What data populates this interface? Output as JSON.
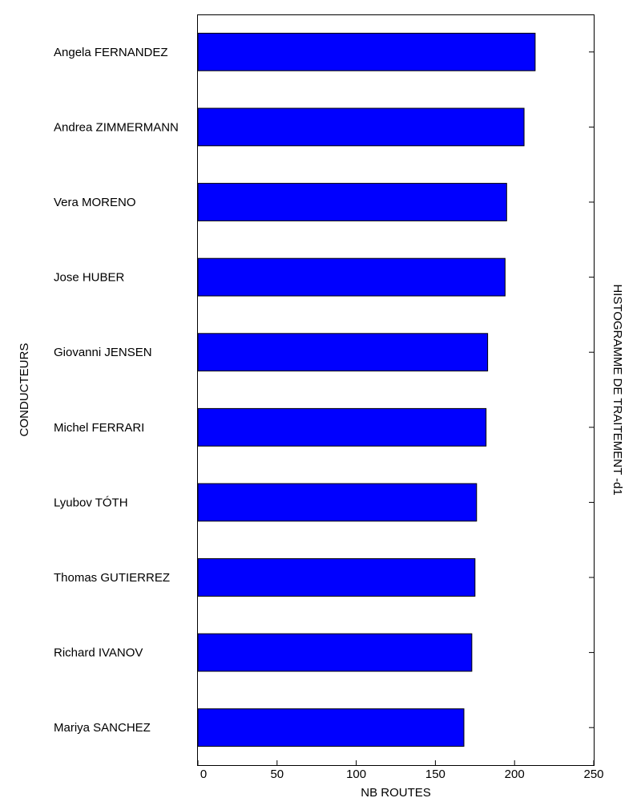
{
  "chart_data": {
    "type": "bar",
    "orientation": "horizontal",
    "title": "HISTOGRAMME DE TRAITEMENT -d1",
    "xlabel": "NB ROUTES",
    "ylabel": "CONDUCTEURS",
    "categories": [
      "Angela FERNANDEZ",
      "Andrea ZIMMERMANN",
      "Vera MORENO",
      "Jose HUBER",
      "Giovanni JENSEN",
      "Michel FERRARI",
      "Lyubov TÓTH",
      "Thomas GUTIERREZ",
      "Richard IVANOV",
      "Mariya SANCHEZ"
    ],
    "values": [
      213,
      206,
      195,
      194,
      183,
      182,
      176,
      175,
      173,
      168
    ],
    "xlim": [
      0,
      250
    ],
    "xticks": [
      "0",
      "50",
      "100",
      "150",
      "200",
      "250"
    ],
    "grid": false,
    "bar_color": "#0000ff",
    "edge_color": "#000000"
  }
}
